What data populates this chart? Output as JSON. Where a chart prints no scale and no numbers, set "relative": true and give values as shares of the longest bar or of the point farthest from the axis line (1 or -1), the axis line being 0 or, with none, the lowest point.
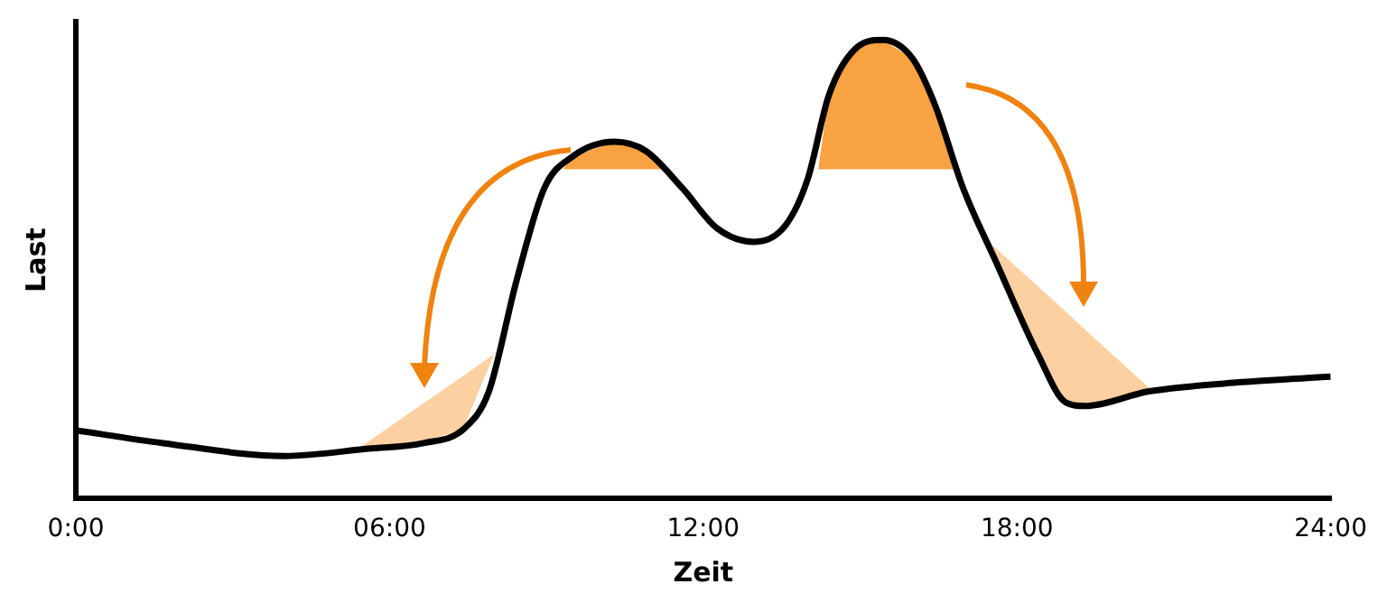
{
  "chart_data": {
    "type": "line",
    "xlabel": "Zeit",
    "ylabel": "Last",
    "relative": true,
    "grid": false,
    "legend": false,
    "marker": "none",
    "line_style": "solid",
    "xlim": [
      0,
      24
    ],
    "xticks": [
      {
        "value": 0,
        "label": "0:00"
      },
      {
        "value": 6,
        "label": "06:00"
      },
      {
        "value": 12,
        "label": "12:00"
      },
      {
        "value": 18,
        "label": "18:00"
      },
      {
        "value": 24,
        "label": "24:00"
      }
    ],
    "series": [
      {
        "type": "area",
        "color": "#fdd0a2",
        "x": [
          5.4,
          6.5,
          7.4,
          8.0,
          7.4,
          6.5
        ],
        "values": [
          0.109,
          0.196,
          0.267,
          0.315,
          0.15,
          0.12
        ]
      },
      {
        "type": "area",
        "color": "#f9a241",
        "x": [
          9.32,
          9.5,
          10.3,
          10.9,
          11.3
        ],
        "values": [
          0.718,
          0.746,
          0.778,
          0.758,
          0.718
        ]
      },
      {
        "type": "area",
        "color": "#f9a241",
        "x": [
          14.2,
          14.4,
          14.9,
          15.43,
          16.0,
          16.43,
          16.86
        ],
        "values": [
          0.718,
          0.879,
          0.98,
          1.0,
          0.96,
          0.859,
          0.718
        ]
      },
      {
        "type": "area",
        "color": "#fdd0a2",
        "x": [
          17.5,
          18.4,
          18.93,
          19.29,
          20.6,
          19.29,
          18.93,
          18.4
        ],
        "values": [
          0.556,
          0.463,
          0.408,
          0.37,
          0.234,
          0.202,
          0.21,
          0.315
        ]
      },
      {
        "type": "line",
        "color": "#000000",
        "x": [
          0,
          1.67,
          3.99,
          5.6,
          6.65,
          7.43,
          7.9,
          8.43,
          8.96,
          9.5,
          10.3,
          10.9,
          11.6,
          12.27,
          12.98,
          13.58,
          14.0,
          14.4,
          14.9,
          15.43,
          16.0,
          16.43,
          16.97,
          17.6,
          18.4,
          18.93,
          19.29,
          20.53,
          22.3,
          24
        ],
        "values": [
          0.149,
          0.121,
          0.093,
          0.109,
          0.121,
          0.153,
          0.234,
          0.476,
          0.677,
          0.746,
          0.778,
          0.758,
          0.677,
          0.589,
          0.56,
          0.597,
          0.698,
          0.879,
          0.98,
          1.0,
          0.96,
          0.859,
          0.677,
          0.516,
          0.315,
          0.21,
          0.202,
          0.234,
          0.254,
          0.266
        ]
      }
    ]
  }
}
